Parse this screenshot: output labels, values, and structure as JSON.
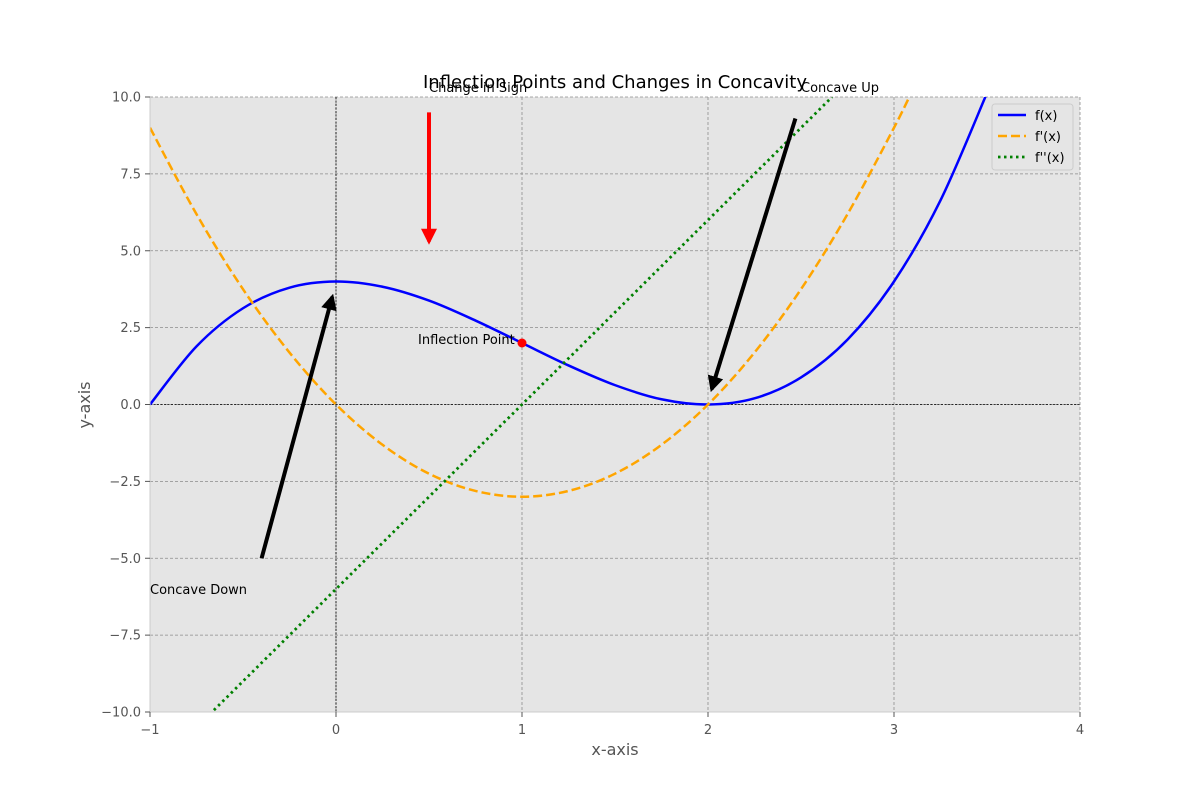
{
  "chart_data": {
    "type": "line",
    "title": "Inflection Points and Changes in Concavity",
    "xlabel": "x-axis",
    "ylabel": "y-axis",
    "xlim": [
      -1,
      4
    ],
    "ylim": [
      -10,
      10
    ],
    "xticks": [
      -1,
      0,
      1,
      2,
      3,
      4
    ],
    "yticks": [
      -10,
      -7.5,
      -5,
      -2.5,
      0,
      2.5,
      5,
      7.5,
      10
    ],
    "xtick_labels": [
      "−1",
      "0",
      "1",
      "2",
      "3",
      "4"
    ],
    "ytick_labels": [
      "−10.0",
      "−7.5",
      "−5.0",
      "−2.5",
      "0.0",
      "2.5",
      "5.0",
      "7.5",
      "10.0"
    ],
    "grid": true,
    "legend_position": "top-right",
    "background": "#e5e5e5",
    "series": [
      {
        "name": "f(x)",
        "color": "#0000ff",
        "style": "solid",
        "x": [
          -1,
          -0.75,
          -0.5,
          -0.25,
          0,
          0.25,
          0.5,
          0.75,
          1,
          1.25,
          1.5,
          1.75,
          2,
          2.25,
          2.5,
          2.75,
          3,
          3.25,
          3.5
        ],
        "y": [
          0,
          1.89,
          3.13,
          3.8,
          4.0,
          3.83,
          3.38,
          2.73,
          2.0,
          1.27,
          0.63,
          0.17,
          0,
          0.2,
          0.88,
          2.11,
          4.0,
          6.64,
          10.13
        ]
      },
      {
        "name": "f'(x)",
        "color": "#ffa500",
        "style": "dashed",
        "x": [
          -1,
          -0.75,
          -0.5,
          -0.25,
          0,
          0.25,
          0.5,
          0.75,
          1,
          1.25,
          1.5,
          1.75,
          2,
          2.25,
          2.5,
          2.75,
          3,
          3.1
        ],
        "y": [
          9.0,
          6.19,
          3.75,
          1.69,
          0,
          -1.31,
          -2.25,
          -2.81,
          -3.0,
          -2.81,
          -2.25,
          -1.31,
          0,
          1.69,
          3.75,
          6.19,
          9.0,
          10.23
        ]
      },
      {
        "name": "f''(x)",
        "color": "#008000",
        "style": "dotted",
        "x": [
          -1,
          2.667
        ],
        "y": [
          -12,
          10
        ]
      }
    ],
    "points": [
      {
        "x": 1,
        "y": 2,
        "color": "#ff0000"
      }
    ],
    "annotations": [
      {
        "text": "Inflection Point",
        "x": 1,
        "y": 2
      },
      {
        "text": "Change in Sign",
        "x": 0.5,
        "y": 10,
        "arrow_from": [
          0.5,
          9.5
        ],
        "arrow_to": [
          0.5,
          5.3
        ],
        "color": "#ff0000"
      },
      {
        "text": "Concave Up",
        "x": 2.5,
        "y": 10,
        "arrow_from": [
          2.47,
          9.3
        ],
        "arrow_to": [
          2.02,
          0.5
        ],
        "color": "#000000"
      },
      {
        "text": "Concave Down",
        "x": -1,
        "y": -6,
        "arrow_from": [
          -0.4,
          -5.0
        ],
        "arrow_to": [
          -0.02,
          3.5
        ],
        "color": "#000000"
      }
    ]
  }
}
